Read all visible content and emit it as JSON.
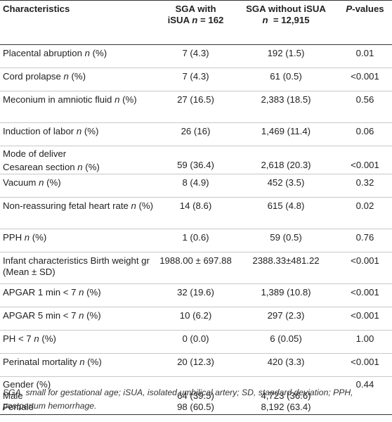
{
  "headers": {
    "characteristics": "Characteristics",
    "sga_with_line1": "SGA with",
    "sga_with_line2_pre": "iSUA ",
    "sga_with_n_label": "n",
    "sga_with_n_val": "= 162",
    "sga_without_line1": "SGA without iSUA",
    "sga_without_n_label": "n",
    "sga_without_n_val": "= 12,915",
    "p_label": "P",
    "p_rest": "-values"
  },
  "rows": [
    {
      "label": "Placental abruption ",
      "unit": "n",
      "suffix": " (%)",
      "with": "7 (4.3)",
      "without": "192 (1.5)",
      "p": "0.01"
    },
    {
      "label": "Cord prolapse ",
      "unit": "n",
      "suffix": " (%)",
      "with": "7 (4.3)",
      "without": "61 (0.5)",
      "p": "<0.001"
    },
    {
      "label": "Meconium in amniotic fluid ",
      "unit": "n",
      "suffix": " (%)",
      "with": "27 (16.5)",
      "without": "2,383 (18.5)",
      "p": "0.56"
    },
    {
      "label": "Induction of labor ",
      "unit": "n",
      "suffix": " (%)",
      "with": "26 (16)",
      "without": "1,469 (11.4)",
      "p": "0.06"
    },
    {
      "label": "Mode of deliver",
      "sub_label": "Cesarean section ",
      "unit": "n",
      "suffix": " (%)",
      "with": "59 (36.4)",
      "without": "2,618 (20.3)",
      "p": "<0.001"
    },
    {
      "label": "Vacuum ",
      "unit": "n",
      "suffix": " (%)",
      "with": "8 (4.9)",
      "without": "452 (3.5)",
      "p": "0.32"
    },
    {
      "label": "Non-reassuring fetal heart rate ",
      "unit": "n",
      "suffix": " (%)",
      "with": "14 (8.6)",
      "without": "615 (4.8)",
      "p": "0.02"
    },
    {
      "label": "PPH ",
      "unit": "n",
      "suffix": " (%)",
      "with": "1 (0.6)",
      "without": "59 (0.5)",
      "p": "0.76"
    },
    {
      "label": "Infant characteristics Birth weight gr (Mean ± SD)",
      "with": "1988.00 ± 697.88",
      "without": "2388.33±481.22",
      "p": "<0.001"
    },
    {
      "label": "APGAR 1 min < 7 ",
      "unit": "n",
      "suffix": " (%)",
      "with": "32 (19.6)",
      "without": "1,389 (10.8)",
      "p": "<0.001"
    },
    {
      "label": "APGAR 5 min < 7 ",
      "unit": "n",
      "suffix": " (%)",
      "with": "10 (6.2)",
      "without": "297 (2.3)",
      "p": "<0.001"
    },
    {
      "label": "PH < 7 ",
      "unit": "n",
      "suffix": " (%)",
      "with": "0 (0.0)",
      "without": "6 (0.05)",
      "p": "1.00"
    },
    {
      "label": "Perinatal mortality ",
      "unit": "n",
      "suffix": " (%)",
      "with": "20 (12.3)",
      "without": "420 (3.3)",
      "p": "<0.001"
    },
    {
      "label": "Gender (%)",
      "sub_label": "Male",
      "sub_label2": "Female",
      "with": "",
      "with2": "64 (39.5)",
      "with3": "98 (60.5)",
      "without": "",
      "without2": "4,723 (36.6)",
      "without3": "8,192 (63.4)",
      "p": "0.44"
    }
  ],
  "footnote": "SGA, small for gestational age; iSUA, isolated umbilical artery; SD, standard deviation; PPH, postpartum hemorrhage."
}
